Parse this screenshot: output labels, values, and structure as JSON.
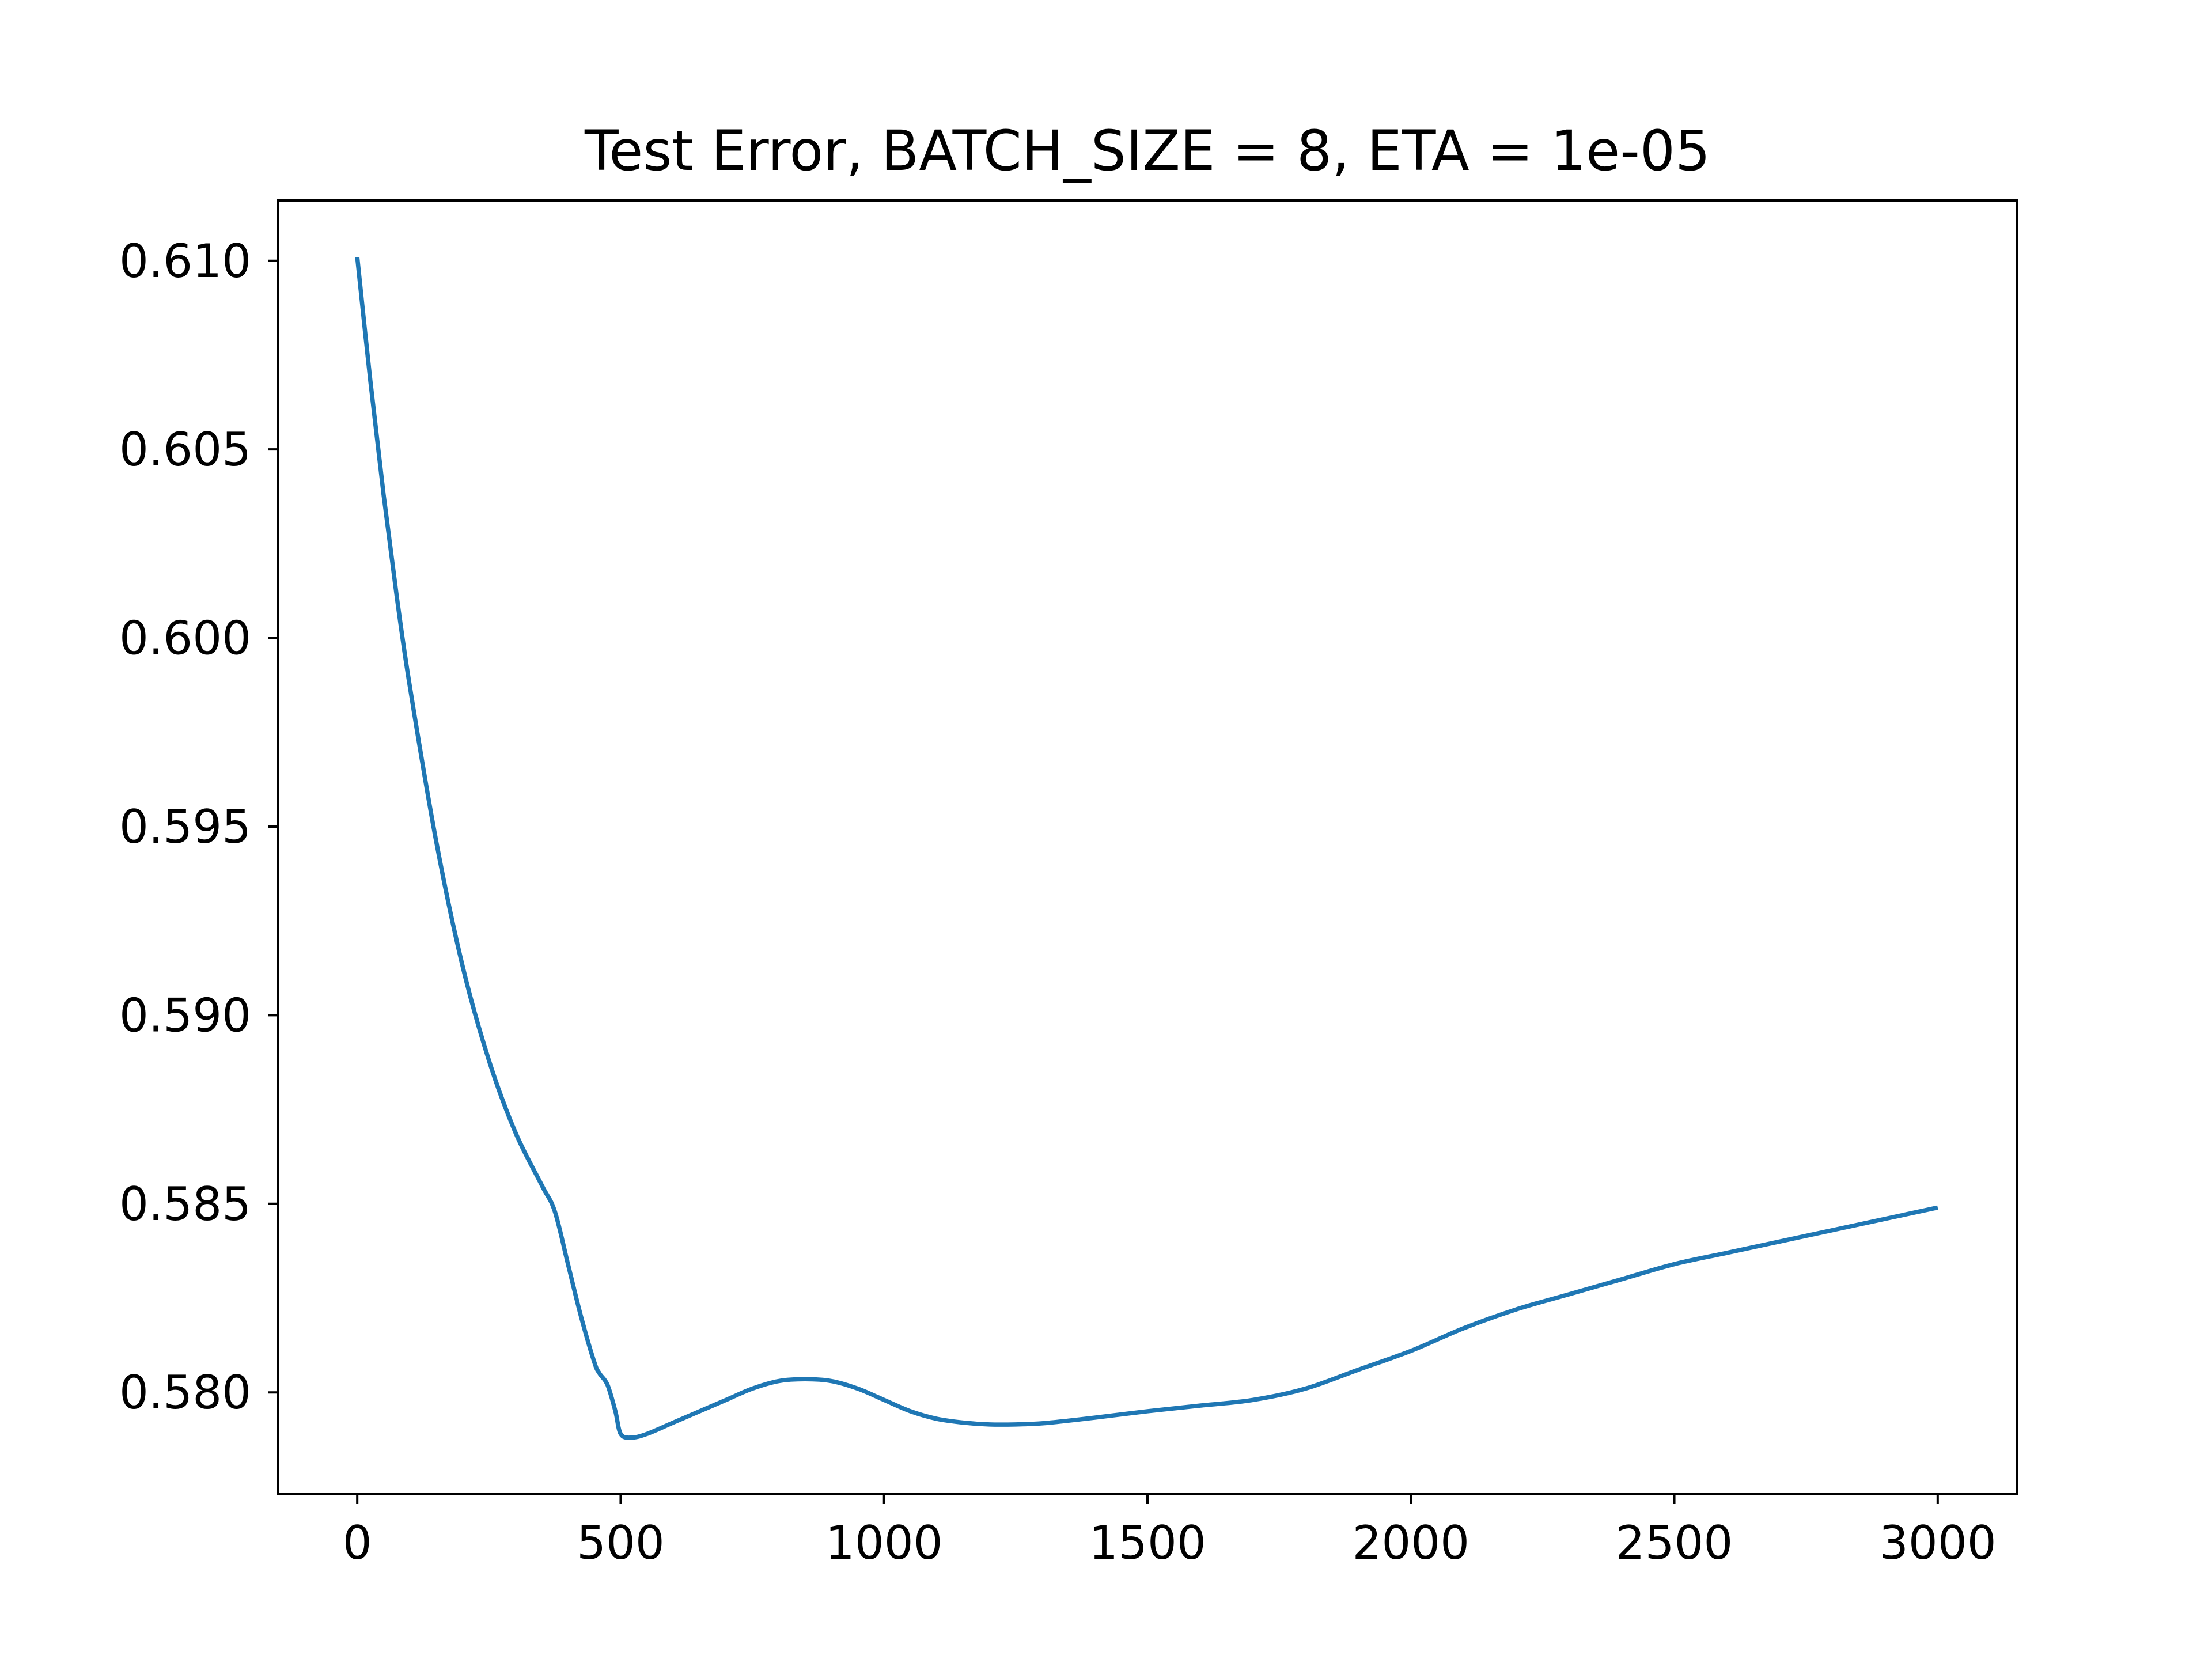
{
  "chart_data": {
    "type": "line",
    "title": "Test Error, BATCH_SIZE = 8, ETA = 1e-05",
    "xlabel": "",
    "ylabel": "",
    "xlim": [
      -150,
      3150
    ],
    "ylim": [
      0.5773,
      0.6116
    ],
    "x_ticks": [
      0,
      500,
      1000,
      1500,
      2000,
      2500,
      3000
    ],
    "x_tick_labels": [
      "0",
      "500",
      "1000",
      "1500",
      "2000",
      "2500",
      "3000"
    ],
    "y_ticks": [
      0.58,
      0.585,
      0.59,
      0.595,
      0.6,
      0.605,
      0.61
    ],
    "y_tick_labels": [
      "0.580",
      "0.585",
      "0.590",
      "0.595",
      "0.600",
      "0.605",
      "0.610"
    ],
    "grid": false,
    "legend": "none",
    "series": [
      {
        "color": "#1f77b4",
        "x": [
          0,
          25,
          50,
          75,
          100,
          150,
          200,
          250,
          300,
          350,
          375,
          400,
          425,
          450,
          460,
          475,
          490,
          500,
          520,
          550,
          600,
          650,
          700,
          750,
          800,
          850,
          900,
          950,
          1000,
          1050,
          1100,
          1150,
          1200,
          1250,
          1300,
          1350,
          1400,
          1500,
          1600,
          1700,
          1800,
          1900,
          2000,
          2100,
          2200,
          2300,
          2400,
          2500,
          2600,
          2700,
          2800,
          2900,
          3000
        ],
        "y": [
          0.6101,
          0.6068,
          0.6038,
          0.6011,
          0.5987,
          0.5946,
          0.5913,
          0.5888,
          0.5869,
          0.5855,
          0.5848,
          0.5834,
          0.582,
          0.5808,
          0.5805,
          0.5802,
          0.5795,
          0.5789,
          0.5788,
          0.5789,
          0.5792,
          0.5795,
          0.5798,
          0.5801,
          0.5803,
          0.58035,
          0.5803,
          0.5801,
          0.5798,
          0.5795,
          0.5793,
          0.5792,
          0.57915,
          0.57915,
          0.57918,
          0.57925,
          0.57933,
          0.5795,
          0.57965,
          0.5798,
          0.5801,
          0.5806,
          0.5811,
          0.5817,
          0.5822,
          0.5826,
          0.583,
          0.5834,
          0.5837,
          0.584,
          0.5843,
          0.5846,
          0.5849
        ]
      }
    ]
  }
}
